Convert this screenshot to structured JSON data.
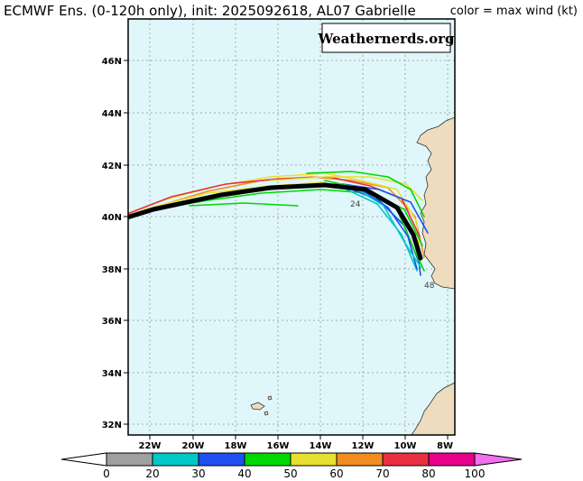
{
  "title": "ECMWF Ens. (0-120h only), init: 2025092618, AL07 Gabrielle",
  "legend_title": "color = max wind (kt)",
  "brand": "Weathernerds.org",
  "lat_labels": [
    "46N",
    "44N",
    "42N",
    "40N",
    "38N",
    "36N",
    "34N",
    "32N"
  ],
  "lon_labels": [
    "22W",
    "20W",
    "18W",
    "16W",
    "14W",
    "12W",
    "10W",
    "8W"
  ],
  "colorbar": {
    "ticks": [
      "0",
      "20",
      "30",
      "40",
      "50",
      "60",
      "70",
      "80",
      "100"
    ],
    "colors": [
      "#a0a0a0",
      "#00c8c8",
      "#2050f0",
      "#00d800",
      "#e8e030",
      "#f08c20",
      "#e83040",
      "#e8008c"
    ],
    "end_left_color": "#ffffff",
    "end_right_color": "#f070f0"
  },
  "map": {
    "ocean_color": "#dff7fb",
    "land_color": "#eddcbd",
    "mean_track_color": "#000000"
  },
  "track_labels": [
    "24",
    "48"
  ]
}
